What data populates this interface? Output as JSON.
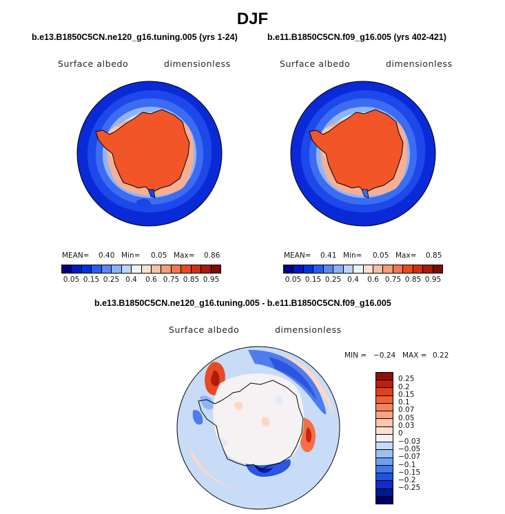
{
  "title": "DJF",
  "panels": [
    {
      "case": "b.e13.B1850C5CN.ne120_g16.tuning.005 (yrs 1-24)",
      "variable": "Surface albedo",
      "units": "dimensionless",
      "mean_label": "MEAN=",
      "mean": "0.40",
      "min_label": "Min=",
      "min": "0.05",
      "max_label": "Max=",
      "max": "0.86"
    },
    {
      "case": "b.e11.B1850C5CN.f09_g16.005 (yrs 402-421)",
      "variable": "Surface albedo",
      "units": "dimensionless",
      "mean_label": "MEAN=",
      "mean": "0.41",
      "min_label": "Min=",
      "min": "0.05",
      "max_label": "Max=",
      "max": "0.85"
    }
  ],
  "abs_colorbar": {
    "colors": [
      "#000080",
      "#0018c4",
      "#0033e0",
      "#2a5cf0",
      "#5a88f5",
      "#8cb0f8",
      "#bdd5fa",
      "#eaf2fb",
      "#fbe0d2",
      "#f8c0a4",
      "#f59c78",
      "#f27650",
      "#ea4a22",
      "#d42e12",
      "#a81a0a",
      "#7a0c04"
    ],
    "labels": [
      "0.05",
      "0.15",
      "0.25",
      "0.4",
      "0.6",
      "0.75",
      "0.85",
      "0.95"
    ]
  },
  "diff_panel": {
    "title": "b.e13.B1850C5CN.ne120_g16.tuning.005 - b.e11.B1850C5CN.f09_g16.005",
    "variable": "Surface albedo",
    "units": "dimensionless",
    "min_label": "MIN =",
    "min": "−0.24",
    "max_label": "MAX =",
    "max": "0.22"
  },
  "diff_colorbar": {
    "colors": [
      "#900c06",
      "#c01e0e",
      "#e0401c",
      "#f0603a",
      "#f5835c",
      "#f8a482",
      "#fbc6aa",
      "#fde0d0",
      "#eef4fb",
      "#c4dcf8",
      "#9ac0f5",
      "#6e9ef0",
      "#4478ea",
      "#2452e0",
      "#0e2ec8",
      "#001894",
      "#000066"
    ],
    "labels": [
      "0.25",
      "0.2",
      "0.15",
      "0.1",
      "0.07",
      "0.05",
      "0.03",
      "0",
      "−0.03",
      "−0.05",
      "−0.07",
      "−0.1",
      "−0.15",
      "−0.2",
      "−0.25"
    ]
  }
}
